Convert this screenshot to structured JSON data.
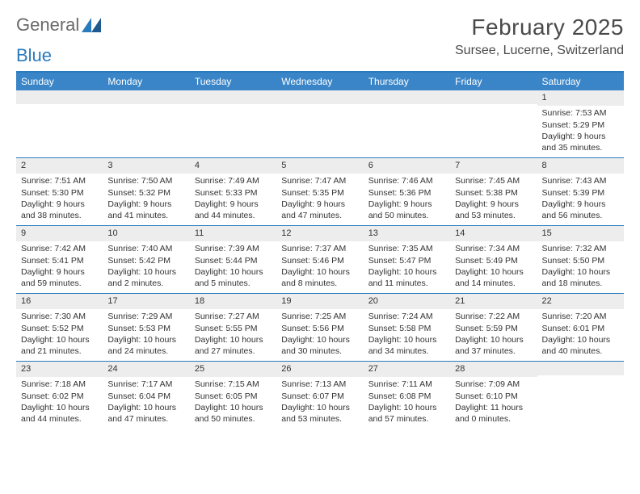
{
  "logo": {
    "word1": "General",
    "word2": "Blue"
  },
  "title": "February 2025",
  "location": "Sursee, Lucerne, Switzerland",
  "day_names": [
    "Sunday",
    "Monday",
    "Tuesday",
    "Wednesday",
    "Thursday",
    "Friday",
    "Saturday"
  ],
  "colors": {
    "header_bar": "#3a85c7",
    "rule": "#2a7bbd",
    "daynum_bg": "#ededed",
    "text": "#333333",
    "logo_gray": "#6a6a6a",
    "logo_blue": "#2a7bbd"
  },
  "weeks": [
    [
      {
        "n": "",
        "sr": "",
        "ss": "",
        "dl": ""
      },
      {
        "n": "",
        "sr": "",
        "ss": "",
        "dl": ""
      },
      {
        "n": "",
        "sr": "",
        "ss": "",
        "dl": ""
      },
      {
        "n": "",
        "sr": "",
        "ss": "",
        "dl": ""
      },
      {
        "n": "",
        "sr": "",
        "ss": "",
        "dl": ""
      },
      {
        "n": "",
        "sr": "",
        "ss": "",
        "dl": ""
      },
      {
        "n": "1",
        "sr": "Sunrise: 7:53 AM",
        "ss": "Sunset: 5:29 PM",
        "dl": "Daylight: 9 hours and 35 minutes."
      }
    ],
    [
      {
        "n": "2",
        "sr": "Sunrise: 7:51 AM",
        "ss": "Sunset: 5:30 PM",
        "dl": "Daylight: 9 hours and 38 minutes."
      },
      {
        "n": "3",
        "sr": "Sunrise: 7:50 AM",
        "ss": "Sunset: 5:32 PM",
        "dl": "Daylight: 9 hours and 41 minutes."
      },
      {
        "n": "4",
        "sr": "Sunrise: 7:49 AM",
        "ss": "Sunset: 5:33 PM",
        "dl": "Daylight: 9 hours and 44 minutes."
      },
      {
        "n": "5",
        "sr": "Sunrise: 7:47 AM",
        "ss": "Sunset: 5:35 PM",
        "dl": "Daylight: 9 hours and 47 minutes."
      },
      {
        "n": "6",
        "sr": "Sunrise: 7:46 AM",
        "ss": "Sunset: 5:36 PM",
        "dl": "Daylight: 9 hours and 50 minutes."
      },
      {
        "n": "7",
        "sr": "Sunrise: 7:45 AM",
        "ss": "Sunset: 5:38 PM",
        "dl": "Daylight: 9 hours and 53 minutes."
      },
      {
        "n": "8",
        "sr": "Sunrise: 7:43 AM",
        "ss": "Sunset: 5:39 PM",
        "dl": "Daylight: 9 hours and 56 minutes."
      }
    ],
    [
      {
        "n": "9",
        "sr": "Sunrise: 7:42 AM",
        "ss": "Sunset: 5:41 PM",
        "dl": "Daylight: 9 hours and 59 minutes."
      },
      {
        "n": "10",
        "sr": "Sunrise: 7:40 AM",
        "ss": "Sunset: 5:42 PM",
        "dl": "Daylight: 10 hours and 2 minutes."
      },
      {
        "n": "11",
        "sr": "Sunrise: 7:39 AM",
        "ss": "Sunset: 5:44 PM",
        "dl": "Daylight: 10 hours and 5 minutes."
      },
      {
        "n": "12",
        "sr": "Sunrise: 7:37 AM",
        "ss": "Sunset: 5:46 PM",
        "dl": "Daylight: 10 hours and 8 minutes."
      },
      {
        "n": "13",
        "sr": "Sunrise: 7:35 AM",
        "ss": "Sunset: 5:47 PM",
        "dl": "Daylight: 10 hours and 11 minutes."
      },
      {
        "n": "14",
        "sr": "Sunrise: 7:34 AM",
        "ss": "Sunset: 5:49 PM",
        "dl": "Daylight: 10 hours and 14 minutes."
      },
      {
        "n": "15",
        "sr": "Sunrise: 7:32 AM",
        "ss": "Sunset: 5:50 PM",
        "dl": "Daylight: 10 hours and 18 minutes."
      }
    ],
    [
      {
        "n": "16",
        "sr": "Sunrise: 7:30 AM",
        "ss": "Sunset: 5:52 PM",
        "dl": "Daylight: 10 hours and 21 minutes."
      },
      {
        "n": "17",
        "sr": "Sunrise: 7:29 AM",
        "ss": "Sunset: 5:53 PM",
        "dl": "Daylight: 10 hours and 24 minutes."
      },
      {
        "n": "18",
        "sr": "Sunrise: 7:27 AM",
        "ss": "Sunset: 5:55 PM",
        "dl": "Daylight: 10 hours and 27 minutes."
      },
      {
        "n": "19",
        "sr": "Sunrise: 7:25 AM",
        "ss": "Sunset: 5:56 PM",
        "dl": "Daylight: 10 hours and 30 minutes."
      },
      {
        "n": "20",
        "sr": "Sunrise: 7:24 AM",
        "ss": "Sunset: 5:58 PM",
        "dl": "Daylight: 10 hours and 34 minutes."
      },
      {
        "n": "21",
        "sr": "Sunrise: 7:22 AM",
        "ss": "Sunset: 5:59 PM",
        "dl": "Daylight: 10 hours and 37 minutes."
      },
      {
        "n": "22",
        "sr": "Sunrise: 7:20 AM",
        "ss": "Sunset: 6:01 PM",
        "dl": "Daylight: 10 hours and 40 minutes."
      }
    ],
    [
      {
        "n": "23",
        "sr": "Sunrise: 7:18 AM",
        "ss": "Sunset: 6:02 PM",
        "dl": "Daylight: 10 hours and 44 minutes."
      },
      {
        "n": "24",
        "sr": "Sunrise: 7:17 AM",
        "ss": "Sunset: 6:04 PM",
        "dl": "Daylight: 10 hours and 47 minutes."
      },
      {
        "n": "25",
        "sr": "Sunrise: 7:15 AM",
        "ss": "Sunset: 6:05 PM",
        "dl": "Daylight: 10 hours and 50 minutes."
      },
      {
        "n": "26",
        "sr": "Sunrise: 7:13 AM",
        "ss": "Sunset: 6:07 PM",
        "dl": "Daylight: 10 hours and 53 minutes."
      },
      {
        "n": "27",
        "sr": "Sunrise: 7:11 AM",
        "ss": "Sunset: 6:08 PM",
        "dl": "Daylight: 10 hours and 57 minutes."
      },
      {
        "n": "28",
        "sr": "Sunrise: 7:09 AM",
        "ss": "Sunset: 6:10 PM",
        "dl": "Daylight: 11 hours and 0 minutes."
      },
      {
        "n": "",
        "sr": "",
        "ss": "",
        "dl": ""
      }
    ]
  ]
}
